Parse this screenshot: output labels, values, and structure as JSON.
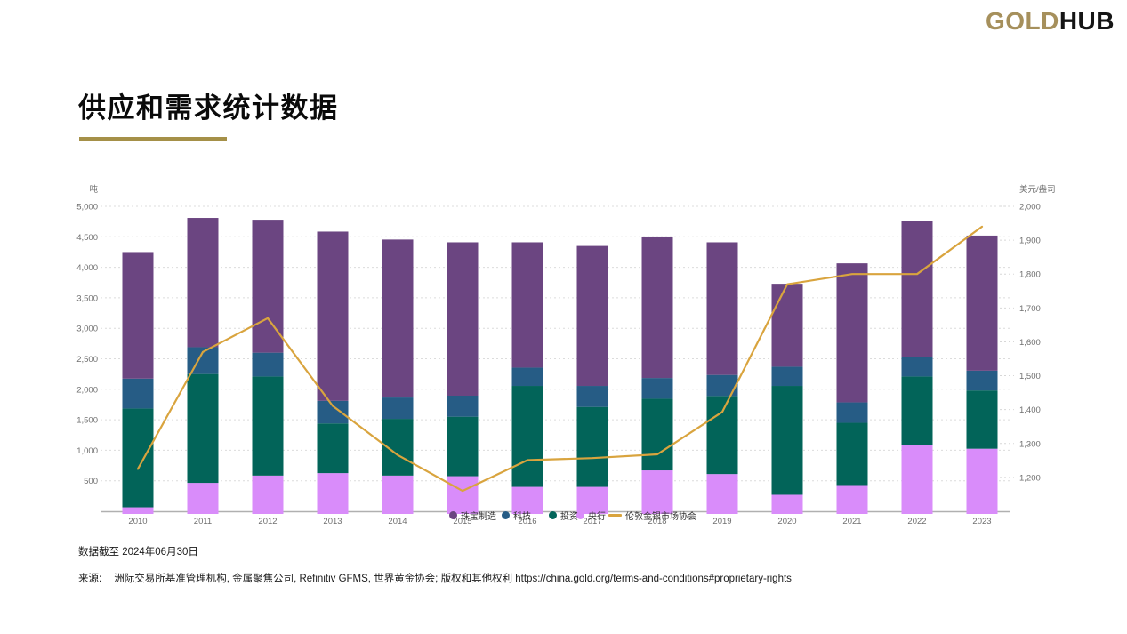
{
  "header": {
    "logo_gold": "GOLD",
    "logo_hub": "HUB",
    "title": "供应和需求统计数据"
  },
  "footer": {
    "data_as_of": "数据截至 2024年06月30日",
    "source_label": "来源:",
    "source_text": "洲际交易所基准管理机构, 金属聚焦公司, Refinitiv GFMS, 世界黄金协会; 版权和其他权利 https://china.gold.org/terms-and-conditions#proprietary-rights"
  },
  "chart_data": {
    "type": "bar-line-combo",
    "stacked": true,
    "categories": [
      "2010",
      "2011",
      "2012",
      "2013",
      "2014",
      "2015",
      "2016",
      "2017",
      "2018",
      "2019",
      "2020",
      "2021",
      "2022",
      "2023"
    ],
    "unit_left": "吨",
    "unit_right": "美元/盎司",
    "ylim_left": [
      0,
      5000
    ],
    "ytick_step_left": 500,
    "ylim_right": [
      1100,
      2000
    ],
    "ytick_step_right": 100,
    "right_labels_start": 1200,
    "grid": "dashed-horizontal",
    "legend_position": "bottom-center-overlapping-axis",
    "series": [
      {
        "name": "央行",
        "color": "#D98CFA",
        "values": [
          65,
          465,
          585,
          625,
          585,
          575,
          400,
          400,
          670,
          610,
          270,
          430,
          1090,
          1025
        ]
      },
      {
        "name": "投资",
        "color": "#026459",
        "values": [
          1620,
          1785,
          1625,
          815,
          930,
          975,
          1655,
          1310,
          1175,
          1280,
          1785,
          1020,
          1120,
          955
        ]
      },
      {
        "name": "科技",
        "color": "#265C85",
        "values": [
          490,
          440,
          390,
          370,
          350,
          345,
          300,
          345,
          340,
          345,
          315,
          335,
          315,
          325
        ]
      },
      {
        "name": "珠宝制造",
        "color": "#6B4581",
        "values": [
          2075,
          2120,
          2180,
          2775,
          2590,
          2515,
          2055,
          2295,
          2320,
          2175,
          1360,
          2280,
          2240,
          2215
        ]
      }
    ],
    "line_series": {
      "name": "伦敦金银市场协会",
      "color": "#D9A43E",
      "axis": "right",
      "values": [
        1225,
        1570,
        1670,
        1411,
        1266,
        1160,
        1251,
        1257,
        1268,
        1393,
        1770,
        1800,
        1800,
        1940
      ]
    },
    "legend_order": [
      "珠宝制造",
      "科技",
      "投资",
      "央行",
      "伦敦金银市场协会"
    ]
  }
}
